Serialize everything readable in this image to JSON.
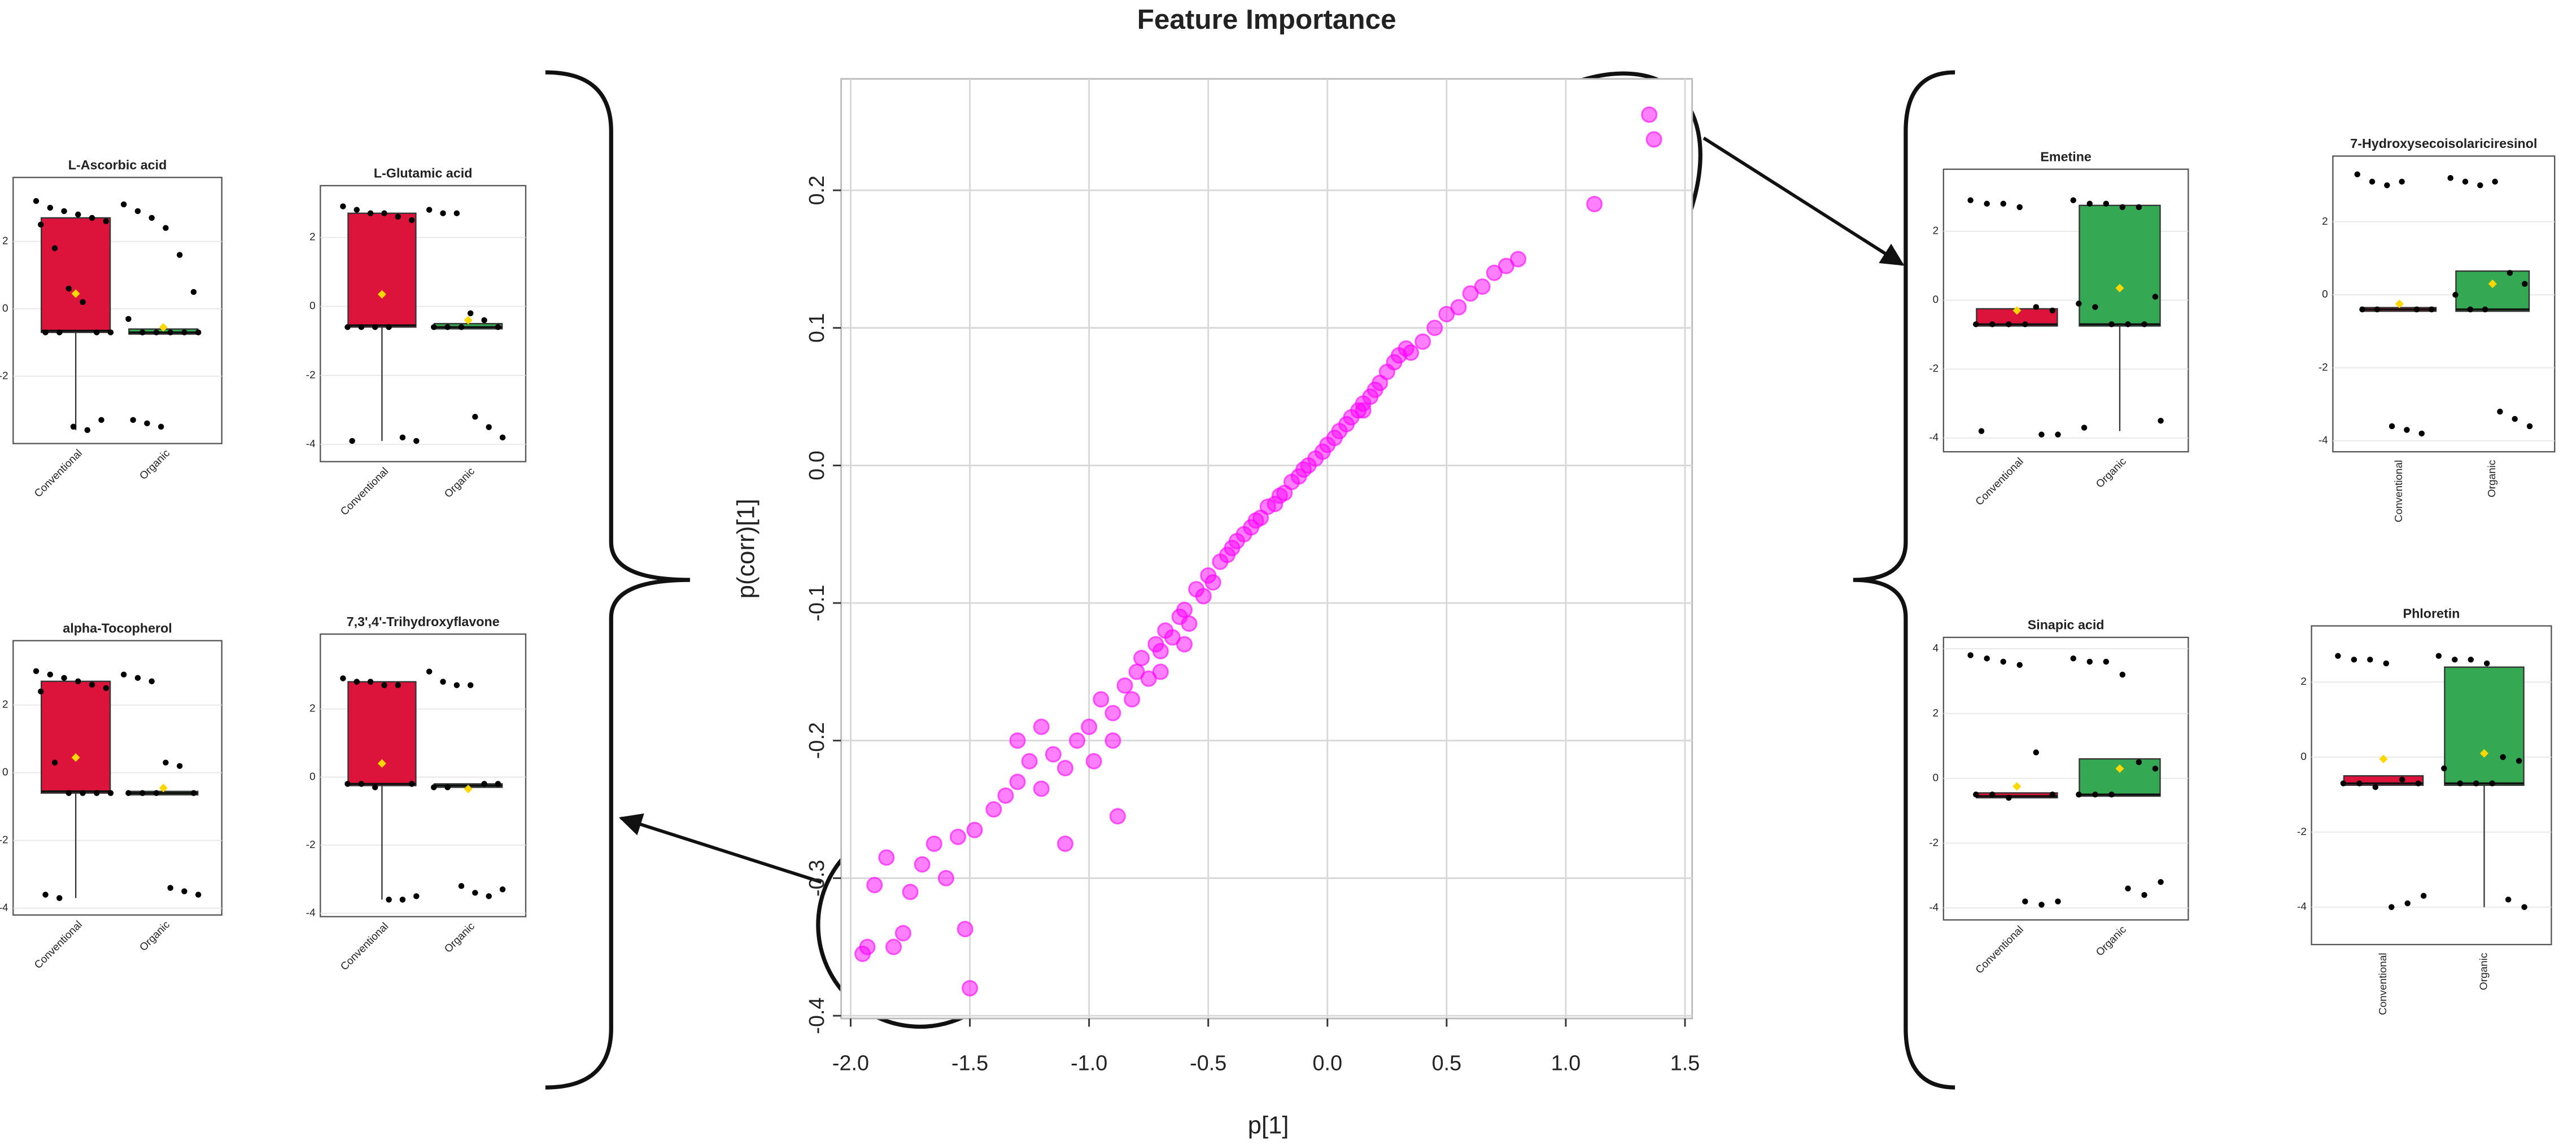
{
  "chart_data": [
    {
      "type": "scatter",
      "title": "Feature Importance",
      "x_label": "p[1]",
      "y_label": "p(corr)[1]",
      "color": "#ff00ff",
      "grid": true,
      "xlim": [
        -2.04,
        1.53
      ],
      "ylim": [
        -0.402,
        0.281
      ],
      "xticks": [
        {
          "value": -2,
          "label": "-2.0"
        },
        -1.5,
        {
          "value": -1,
          "label": "-1.0"
        },
        -0.5,
        {
          "value": 0,
          "label": "0.0"
        },
        0.5,
        {
          "value": 1,
          "label": "1.0"
        },
        1.5
      ],
      "yticks": [
        0.2,
        0.1,
        {
          "value": 0,
          "label": "0.0"
        },
        -0.1,
        -0.2,
        -0.3,
        -0.4
      ],
      "x": [
        -1.95,
        -1.93,
        -1.82,
        -1.78,
        -1.9,
        -1.85,
        -1.75,
        -1.7,
        -1.65,
        -1.6,
        -1.52,
        -1.5,
        -1.55,
        -1.48,
        -1.4,
        -1.35,
        -1.3,
        -1.25,
        -1.2,
        -1.15,
        -1.1,
        -1.05,
        -1.0,
        -0.98,
        -0.95,
        -0.9,
        -0.88,
        -0.85,
        -0.82,
        -0.8,
        -0.78,
        -0.75,
        -0.72,
        -0.7,
        -0.68,
        -0.65,
        -0.62,
        -0.6,
        -0.58,
        -0.55,
        -0.52,
        -0.5,
        -0.48,
        -0.45,
        -0.42,
        -0.4,
        -0.38,
        -0.35,
        -0.32,
        -0.3,
        -0.28,
        -0.25,
        -0.22,
        -0.2,
        -0.18,
        -0.15,
        -0.12,
        -0.1,
        -0.08,
        -0.05,
        -0.02,
        0.0,
        0.03,
        0.05,
        0.08,
        0.1,
        0.13,
        0.15,
        0.18,
        0.2,
        0.22,
        0.25,
        0.28,
        0.3,
        0.33,
        0.35,
        0.4,
        0.45,
        0.5,
        0.55,
        0.6,
        0.65,
        0.7,
        0.75,
        0.8,
        1.12,
        1.35,
        1.37,
        -1.3,
        -1.1,
        -0.9,
        -0.7,
        -0.6,
        -1.2,
        0.15
      ],
      "y": [
        -0.355,
        -0.35,
        -0.35,
        -0.34,
        -0.305,
        -0.285,
        -0.31,
        -0.29,
        -0.275,
        -0.3,
        -0.337,
        -0.38,
        -0.27,
        -0.265,
        -0.25,
        -0.24,
        -0.23,
        -0.215,
        -0.235,
        -0.21,
        -0.275,
        -0.2,
        -0.19,
        -0.215,
        -0.17,
        -0.18,
        -0.255,
        -0.16,
        -0.17,
        -0.15,
        -0.14,
        -0.155,
        -0.13,
        -0.135,
        -0.12,
        -0.125,
        -0.11,
        -0.105,
        -0.115,
        -0.09,
        -0.095,
        -0.08,
        -0.085,
        -0.07,
        -0.065,
        -0.06,
        -0.055,
        -0.05,
        -0.045,
        -0.04,
        -0.038,
        -0.03,
        -0.028,
        -0.022,
        -0.02,
        -0.012,
        -0.008,
        -0.003,
        0.0,
        0.005,
        0.01,
        0.015,
        0.02,
        0.025,
        0.03,
        0.035,
        0.04,
        0.045,
        0.05,
        0.055,
        0.06,
        0.068,
        0.075,
        0.08,
        0.085,
        0.082,
        0.09,
        0.1,
        0.11,
        0.115,
        0.125,
        0.13,
        0.14,
        0.145,
        0.15,
        0.19,
        0.255,
        0.237,
        -0.2,
        -0.22,
        -0.2,
        -0.15,
        -0.13,
        -0.19,
        0.04
      ]
    },
    {
      "type": "box",
      "title": "L-Ascorbic acid",
      "categories": [
        "Conventional",
        "Organic"
      ],
      "colors": [
        "#dc143c",
        "#34a853"
      ],
      "mean_color": "#ffd700",
      "ylim": [
        -4.0,
        3.9
      ],
      "yticks": [
        2,
        0,
        -2
      ],
      "boxes": [
        {
          "whisker_low": -3.6,
          "q1": -0.7,
          "median": -0.65,
          "q3": 2.7,
          "whisker_high": 2.7,
          "mean": 0.45,
          "points": [
            3.2,
            3.0,
            2.9,
            2.8,
            2.7,
            2.6,
            2.5,
            1.8,
            0.6,
            0.2,
            -0.7,
            -0.7,
            -0.7,
            -0.7,
            -3.5,
            -3.6,
            -3.3
          ]
        },
        {
          "whisker_low": -0.75,
          "q1": -0.75,
          "median": -0.7,
          "q3": -0.6,
          "whisker_high": -0.6,
          "mean": -0.55,
          "points": [
            3.1,
            2.9,
            2.7,
            2.4,
            1.6,
            0.5,
            -0.3,
            -0.7,
            -0.7,
            -0.7,
            -0.7,
            -0.7,
            -3.3,
            -3.4,
            -3.5
          ]
        }
      ]
    },
    {
      "type": "box",
      "title": "L-Glutamic acid",
      "categories": [
        "Conventional",
        "Organic"
      ],
      "colors": [
        "#dc143c",
        "#34a853"
      ],
      "mean_color": "#ffd700",
      "ylim": [
        -4.5,
        3.5
      ],
      "yticks": [
        2,
        0,
        -2,
        -4
      ],
      "boxes": [
        {
          "whisker_low": -3.9,
          "q1": -0.6,
          "median": -0.55,
          "q3": 2.7,
          "whisker_high": 2.7,
          "mean": 0.35,
          "points": [
            2.9,
            2.8,
            2.7,
            2.7,
            2.6,
            2.5,
            -0.6,
            -0.6,
            -0.6,
            -0.6,
            -3.8,
            -3.9,
            -3.9
          ]
        },
        {
          "whisker_low": -0.65,
          "q1": -0.65,
          "median": -0.6,
          "q3": -0.5,
          "whisker_high": -0.5,
          "mean": -0.4,
          "points": [
            2.8,
            2.7,
            2.7,
            -0.2,
            -0.4,
            -0.6,
            -0.6,
            -0.6,
            -0.6,
            -3.2,
            -3.5,
            -3.8
          ]
        }
      ]
    },
    {
      "type": "box",
      "title": "alpha-Tocopherol",
      "categories": [
        "Conventional",
        "Organic"
      ],
      "colors": [
        "#dc143c",
        "#34a853"
      ],
      "mean_color": "#ffd700",
      "ylim": [
        -4.2,
        3.9
      ],
      "yticks": [
        2,
        0,
        -2,
        -4
      ],
      "boxes": [
        {
          "whisker_low": -3.7,
          "q1": -0.6,
          "median": -0.55,
          "q3": 2.7,
          "whisker_high": 2.7,
          "mean": 0.45,
          "points": [
            3.0,
            2.9,
            2.8,
            2.7,
            2.6,
            2.5,
            2.4,
            0.3,
            -0.6,
            -0.6,
            -0.6,
            -0.6,
            -3.6,
            -3.7
          ]
        },
        {
          "whisker_low": -0.65,
          "q1": -0.65,
          "median": -0.6,
          "q3": -0.55,
          "whisker_high": -0.55,
          "mean": -0.45,
          "points": [
            2.9,
            2.8,
            2.7,
            0.3,
            0.2,
            -0.6,
            -0.6,
            -0.6,
            -0.6,
            -3.4,
            -3.5,
            -3.6
          ]
        }
      ]
    },
    {
      "type": "box",
      "title": "7,3',4'-Trihydroxyflavone",
      "categories": [
        "Conventional",
        "Organic"
      ],
      "colors": [
        "#dc143c",
        "#34a853"
      ],
      "mean_color": "#ffd700",
      "ylim": [
        -4.1,
        4.2
      ],
      "yticks": [
        2,
        0,
        -2,
        -4
      ],
      "boxes": [
        {
          "whisker_low": -3.6,
          "q1": -0.25,
          "median": -0.2,
          "q3": 2.8,
          "whisker_high": 2.8,
          "mean": 0.4,
          "points": [
            2.9,
            2.8,
            2.8,
            2.7,
            2.7,
            -0.2,
            -0.2,
            -0.2,
            -0.3,
            -3.6,
            -3.6,
            -3.5
          ]
        },
        {
          "whisker_low": -0.3,
          "q1": -0.3,
          "median": -0.25,
          "q3": -0.2,
          "whisker_high": -0.2,
          "mean": -0.35,
          "points": [
            3.1,
            2.8,
            2.7,
            2.7,
            -0.2,
            -0.2,
            -0.3,
            -0.3,
            -3.2,
            -3.4,
            -3.5,
            -3.3
          ]
        }
      ]
    },
    {
      "type": "box",
      "title": "Emetine",
      "categories": [
        "Conventional",
        "Organic"
      ],
      "colors": [
        "#dc143c",
        "#34a853"
      ],
      "mean_color": "#ffd700",
      "ylim": [
        -4.4,
        3.8
      ],
      "yticks": [
        2,
        0,
        -2,
        -4
      ],
      "boxes": [
        {
          "whisker_low": -0.75,
          "q1": -0.75,
          "median": -0.7,
          "q3": -0.25,
          "whisker_high": -0.25,
          "mean": -0.3,
          "points": [
            2.9,
            2.8,
            2.8,
            2.7,
            -0.2,
            -0.3,
            -0.7,
            -0.7,
            -0.7,
            -0.7,
            -3.9,
            -3.9,
            -3.8
          ]
        },
        {
          "whisker_low": -3.8,
          "q1": -0.75,
          "median": -0.7,
          "q3": 2.75,
          "whisker_high": 2.75,
          "mean": 0.35,
          "points": [
            2.9,
            2.8,
            2.8,
            2.7,
            2.7,
            0.1,
            -0.1,
            -0.2,
            -0.7,
            -0.7,
            -0.7,
            -3.5,
            -3.7
          ]
        }
      ]
    },
    {
      "type": "box",
      "title": "7-Hydroxysecoisolariciresinol",
      "categories": [
        "Conventional",
        "Organic"
      ],
      "colors": [
        "#dc143c",
        "#34a853"
      ],
      "mean_color": "#ffd700",
      "ylim": [
        -4.3,
        3.8
      ],
      "yticks": [
        2,
        0,
        -2,
        -4
      ],
      "boxes": [
        {
          "whisker_low": -0.45,
          "q1": -0.45,
          "median": -0.4,
          "q3": -0.35,
          "whisker_high": -0.35,
          "mean": -0.25,
          "points": [
            3.3,
            3.1,
            3.0,
            3.1,
            -0.4,
            -0.4,
            -0.4,
            -0.4,
            -3.6,
            -3.7,
            -3.8
          ]
        },
        {
          "whisker_low": -0.45,
          "q1": -0.45,
          "median": -0.4,
          "q3": 0.65,
          "whisker_high": 0.65,
          "mean": 0.3,
          "points": [
            3.2,
            3.1,
            3.0,
            3.1,
            0.6,
            0.3,
            0.0,
            -0.4,
            -0.4,
            -3.2,
            -3.4,
            -3.6
          ]
        }
      ]
    },
    {
      "type": "box",
      "title": "Sinapic acid",
      "categories": [
        "Conventional",
        "Organic"
      ],
      "colors": [
        "#dc143c",
        "#34a853"
      ],
      "mean_color": "#ffd700",
      "ylim": [
        -4.37,
        4.35
      ],
      "yticks": [
        4,
        2,
        0,
        -2,
        -4
      ],
      "boxes": [
        {
          "whisker_low": -0.6,
          "q1": -0.6,
          "median": -0.55,
          "q3": -0.45,
          "whisker_high": -0.45,
          "mean": -0.25,
          "points": [
            3.8,
            3.7,
            3.6,
            3.5,
            0.8,
            -0.5,
            -0.5,
            -0.5,
            -0.6,
            -3.8,
            -3.9,
            -3.8
          ]
        },
        {
          "whisker_low": -0.55,
          "q1": -0.55,
          "median": -0.5,
          "q3": 0.6,
          "whisker_high": 0.6,
          "mean": 0.3,
          "points": [
            3.7,
            3.6,
            3.6,
            3.2,
            0.5,
            0.3,
            -0.5,
            -0.5,
            -0.5,
            -3.4,
            -3.6,
            -3.2
          ]
        }
      ]
    },
    {
      "type": "box",
      "title": "Phloretin",
      "categories": [
        "Conventional",
        "Organic"
      ],
      "colors": [
        "#dc143c",
        "#34a853"
      ],
      "mean_color": "#ffd700",
      "ylim": [
        -5.0,
        3.5
      ],
      "yticks": [
        2,
        0,
        -2,
        -4
      ],
      "boxes": [
        {
          "whisker_low": -0.75,
          "q1": -0.75,
          "median": -0.7,
          "q3": -0.5,
          "whisker_high": -0.5,
          "mean": -0.05,
          "points": [
            2.7,
            2.6,
            2.6,
            2.5,
            -0.6,
            -0.7,
            -0.7,
            -0.7,
            -0.8,
            -4.0,
            -3.9,
            -3.7
          ]
        },
        {
          "whisker_low": -4.0,
          "q1": -0.75,
          "median": -0.7,
          "q3": 2.4,
          "whisker_high": 2.4,
          "mean": 0.1,
          "points": [
            2.7,
            2.6,
            2.6,
            2.5,
            0.0,
            -0.1,
            -0.3,
            -0.7,
            -0.7,
            -0.7,
            -3.8,
            -4.0
          ]
        }
      ]
    }
  ]
}
